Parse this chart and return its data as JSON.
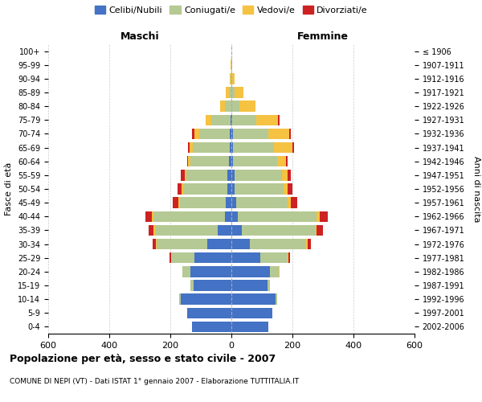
{
  "age_groups": [
    "0-4",
    "5-9",
    "10-14",
    "15-19",
    "20-24",
    "25-29",
    "30-34",
    "35-39",
    "40-44",
    "45-49",
    "50-54",
    "55-59",
    "60-64",
    "65-69",
    "70-74",
    "75-79",
    "80-84",
    "85-89",
    "90-94",
    "95-99",
    "100+"
  ],
  "birth_years": [
    "2002-2006",
    "1997-2001",
    "1992-1996",
    "1987-1991",
    "1982-1986",
    "1977-1981",
    "1972-1976",
    "1967-1971",
    "1962-1966",
    "1957-1961",
    "1952-1956",
    "1947-1951",
    "1942-1946",
    "1937-1941",
    "1932-1936",
    "1927-1931",
    "1922-1926",
    "1917-1921",
    "1912-1916",
    "1907-1911",
    "≤ 1906"
  ],
  "male": {
    "celibi": [
      130,
      145,
      165,
      125,
      135,
      120,
      80,
      45,
      20,
      18,
      12,
      12,
      8,
      6,
      5,
      2,
      0,
      0,
      0,
      0,
      0
    ],
    "coniugati": [
      0,
      0,
      5,
      8,
      25,
      75,
      165,
      205,
      235,
      150,
      145,
      135,
      125,
      120,
      100,
      65,
      22,
      8,
      2,
      1,
      0
    ],
    "vedovi": [
      0,
      0,
      0,
      0,
      0,
      2,
      3,
      5,
      5,
      5,
      5,
      5,
      8,
      10,
      15,
      18,
      15,
      10,
      3,
      1,
      0
    ],
    "divorziati": [
      0,
      0,
      0,
      0,
      0,
      5,
      10,
      15,
      22,
      20,
      15,
      15,
      5,
      5,
      10,
      0,
      0,
      0,
      0,
      0,
      0
    ]
  },
  "female": {
    "nubili": [
      120,
      135,
      145,
      118,
      125,
      95,
      60,
      35,
      20,
      15,
      10,
      10,
      5,
      5,
      5,
      2,
      0,
      0,
      0,
      0,
      0
    ],
    "coniugate": [
      0,
      0,
      5,
      8,
      30,
      90,
      185,
      240,
      260,
      170,
      160,
      155,
      145,
      135,
      115,
      80,
      25,
      10,
      2,
      1,
      0
    ],
    "vedove": [
      0,
      0,
      0,
      0,
      2,
      3,
      5,
      5,
      10,
      10,
      15,
      20,
      30,
      60,
      70,
      70,
      55,
      30,
      8,
      2,
      0
    ],
    "divorziate": [
      0,
      0,
      0,
      0,
      0,
      5,
      10,
      20,
      25,
      20,
      15,
      10,
      5,
      5,
      5,
      5,
      0,
      0,
      0,
      0,
      0
    ]
  },
  "colors": {
    "celibi": "#4472c4",
    "coniugati": "#b5c994",
    "vedovi": "#f5c242",
    "divorziati": "#cc2222"
  },
  "title": "Popolazione per età, sesso e stato civile - 2007",
  "subtitle": "COMUNE DI NEPI (VT) - Dati ISTAT 1° gennaio 2007 - Elaborazione TUTTITALIA.IT",
  "xlabel_left": "Maschi",
  "xlabel_right": "Femmine",
  "ylabel_left": "Fasce di età",
  "ylabel_right": "Anni di nascita",
  "xlim": 600,
  "legend_labels": [
    "Celibi/Nubili",
    "Coniugati/e",
    "Vedovi/e",
    "Divorziati/e"
  ],
  "background_color": "#ffffff",
  "grid_color": "#cccccc"
}
